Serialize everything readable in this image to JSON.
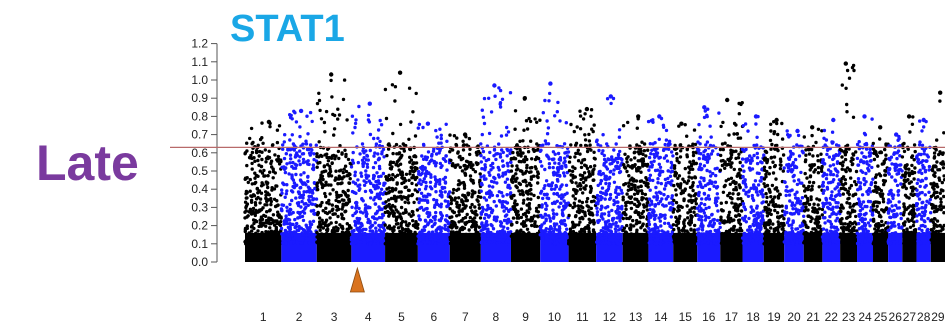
{
  "side_label": "Late",
  "chart_data": {
    "type": "scatter",
    "title": "STAT1",
    "xlabel": "",
    "ylabel": "",
    "ylim": [
      0.0,
      1.2
    ],
    "yticks": [
      "0.0",
      "0.1",
      "0.2",
      "0.3",
      "0.4",
      "0.5",
      "0.6",
      "0.7",
      "0.8",
      "0.9",
      "1.0",
      "1.1",
      "1.2"
    ],
    "threshold": 0.63,
    "series_colors": [
      "#000000",
      "#1a1aff"
    ],
    "threshold_color": "#b86a6a",
    "marker_color": "#d9731f",
    "marker_after_chromosome": "3",
    "chromosomes": [
      {
        "label": "1",
        "peak": 0.77
      },
      {
        "label": "2",
        "peak": 0.83
      },
      {
        "label": "3",
        "peak": 1.03
      },
      {
        "label": "4",
        "peak": 0.87
      },
      {
        "label": "5",
        "peak": 1.04
      },
      {
        "label": "6",
        "peak": 0.76
      },
      {
        "label": "7",
        "peak": 0.7
      },
      {
        "label": "8",
        "peak": 0.97
      },
      {
        "label": "9",
        "peak": 0.9
      },
      {
        "label": "10",
        "peak": 0.98
      },
      {
        "label": "11",
        "peak": 0.84
      },
      {
        "label": "12",
        "peak": 0.91
      },
      {
        "label": "13",
        "peak": 0.8
      },
      {
        "label": "14",
        "peak": 0.8
      },
      {
        "label": "15",
        "peak": 0.76
      },
      {
        "label": "16",
        "peak": 0.85
      },
      {
        "label": "17",
        "peak": 0.89
      },
      {
        "label": "18",
        "peak": 0.8
      },
      {
        "label": "19",
        "peak": 0.78
      },
      {
        "label": "20",
        "peak": 0.72
      },
      {
        "label": "21",
        "peak": 0.74
      },
      {
        "label": "22",
        "peak": 0.78
      },
      {
        "label": "23",
        "peak": 1.09
      },
      {
        "label": "24",
        "peak": 0.8
      },
      {
        "label": "25",
        "peak": 0.74
      },
      {
        "label": "26",
        "peak": 0.7
      },
      {
        "label": "27",
        "peak": 0.8
      },
      {
        "label": "28",
        "peak": 0.78
      },
      {
        "label": "29",
        "peak": 0.93
      }
    ]
  }
}
